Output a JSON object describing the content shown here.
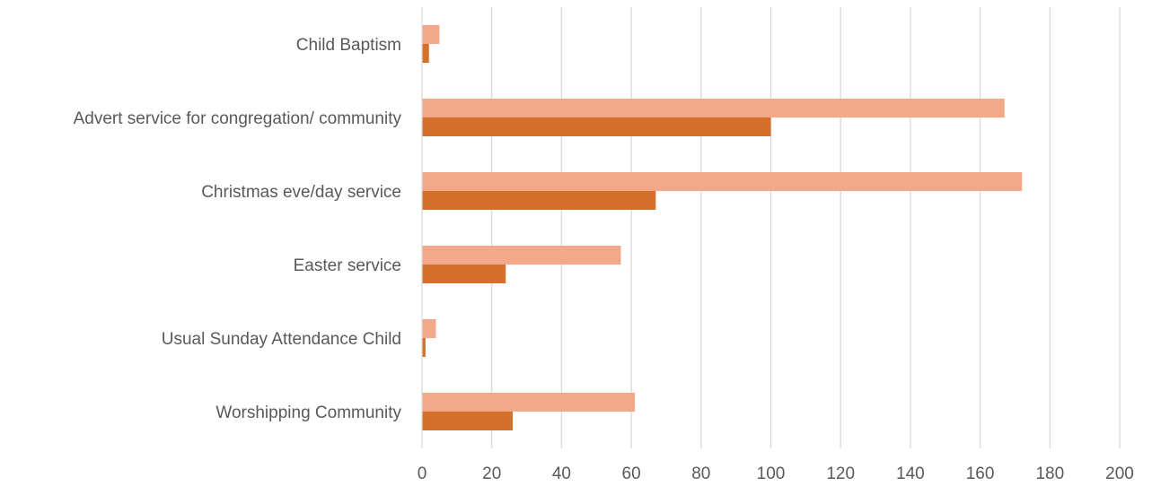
{
  "chart_data": {
    "type": "bar",
    "orientation": "horizontal",
    "title": "",
    "xlabel": "",
    "ylabel": "",
    "categories": [
      "Child Baptism",
      "Advert service for congregation/ community",
      "Christmas eve/day service",
      "Easter service",
      "Usual Sunday Attendance Child",
      "Worshipping Community"
    ],
    "series": [
      {
        "color": "#F2A889",
        "values": [
          5,
          167,
          172,
          57,
          4,
          61
        ]
      },
      {
        "color": "#D4702C",
        "values": [
          2,
          100,
          67,
          24,
          1,
          26
        ]
      }
    ],
    "xlim": [
      0,
      200
    ],
    "xticks": [
      0,
      20,
      40,
      60,
      80,
      100,
      120,
      140,
      160,
      180,
      200
    ],
    "grid": {
      "vertical": true,
      "horizontal": false,
      "color": "#D9D9D9"
    },
    "legend": "none"
  }
}
